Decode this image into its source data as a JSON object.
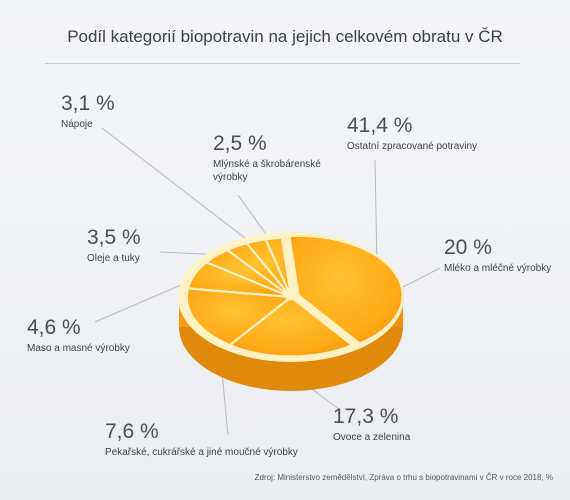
{
  "header": {
    "title": "Podíl kategorií biopotravin na jejich celkovém obratu v ČR"
  },
  "footer": {
    "source": "Zdroj: Ministerstvo zemědělství, Zpráva o trhu s biopotravinami v ČR v roce 2018, %"
  },
  "colors": {
    "peel": "#f7a21b",
    "pulp": "#ffb21e",
    "pith": "#fff1c4",
    "leader": "#b8bcc3",
    "text": "#3a3f47"
  },
  "chart_data": {
    "type": "pie",
    "title": "Podíl kategorií biopotravin na jejich celkovém obratu v ČR",
    "unit": "%",
    "slices": [
      {
        "label": "Ostatní zpracované potraviny",
        "value": 41.4,
        "display": "41,4 %"
      },
      {
        "label": "Mléko a mléčné výrobky",
        "value": 20,
        "display": "20 %"
      },
      {
        "label": "Ovoce a zelenina",
        "value": 17.3,
        "display": "17,3 %"
      },
      {
        "label": "Pekařské, cukrářské a jiné moučné výrobky",
        "value": 7.6,
        "display": "7,6 %"
      },
      {
        "label": "Maso a masné výrobky",
        "value": 4.6,
        "display": "4,6 %"
      },
      {
        "label": "Oleje a tuky",
        "value": 3.5,
        "display": "3,5 %"
      },
      {
        "label": "Nápoje",
        "value": 3.1,
        "display": "3,1 %"
      },
      {
        "label": "Mlýnské a škrobárenské výrobky",
        "value": 2.5,
        "display": "2,5 %"
      }
    ]
  }
}
